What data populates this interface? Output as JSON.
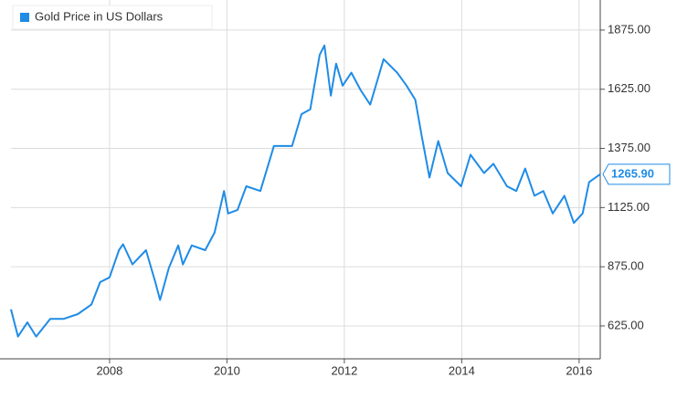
{
  "chart_data": {
    "type": "line",
    "series": [
      {
        "name": "Gold Price in US Dollars",
        "color": "#1f8ce6",
        "x": [
          2006.32,
          2006.44,
          2006.6,
          2006.75,
          2006.99,
          2007.22,
          2007.46,
          2007.69,
          2007.84,
          2008.0,
          2008.16,
          2008.23,
          2008.39,
          2008.62,
          2008.78,
          2008.86,
          2009.01,
          2009.17,
          2009.25,
          2009.4,
          2009.63,
          2009.79,
          2009.95,
          2010.02,
          2010.18,
          2010.33,
          2010.57,
          2010.8,
          2011.11,
          2011.27,
          2011.42,
          2011.58,
          2011.66,
          2011.77,
          2011.86,
          2011.97,
          2012.12,
          2012.28,
          2012.44,
          2012.67,
          2012.9,
          2013.06,
          2013.21,
          2013.32,
          2013.45,
          2013.6,
          2013.76,
          2013.99,
          2014.15,
          2014.38,
          2014.54,
          2014.77,
          2014.93,
          2015.08,
          2015.24,
          2015.39,
          2015.55,
          2015.75,
          2015.91,
          2016.06,
          2016.17,
          2016.28,
          2016.36
        ],
        "values": [
          695,
          580,
          640,
          580,
          655,
          655,
          675,
          715,
          810,
          830,
          945,
          970,
          885,
          945,
          810,
          735,
          870,
          965,
          885,
          965,
          945,
          1020,
          1195,
          1100,
          1115,
          1215,
          1195,
          1385,
          1385,
          1520,
          1540,
          1770,
          1810,
          1598,
          1733,
          1640,
          1695,
          1620,
          1560,
          1752,
          1695,
          1640,
          1580,
          1425,
          1252,
          1406,
          1271,
          1215,
          1348,
          1271,
          1310,
          1215,
          1195,
          1290,
          1175,
          1195,
          1100,
          1175,
          1060,
          1100,
          1233,
          1252,
          1265.9
        ]
      }
    ],
    "annotation": {
      "value": 1265.9,
      "label": "1265.90"
    },
    "xlim": [
      2006.32,
      2016.36
    ],
    "xticks": [
      2008,
      2010,
      2012,
      2014,
      2016
    ],
    "ylim": [
      486,
      2002
    ],
    "yticks": [
      {
        "value": 625,
        "label": "625.00"
      },
      {
        "value": 875,
        "label": "875.00"
      },
      {
        "value": 1125,
        "label": "1125.00"
      },
      {
        "value": 1375,
        "label": "1375.00"
      },
      {
        "value": 1625,
        "label": "1625.00"
      },
      {
        "value": 1875,
        "label": "1875.00"
      }
    ],
    "grid": true,
    "legend": "top-left"
  }
}
